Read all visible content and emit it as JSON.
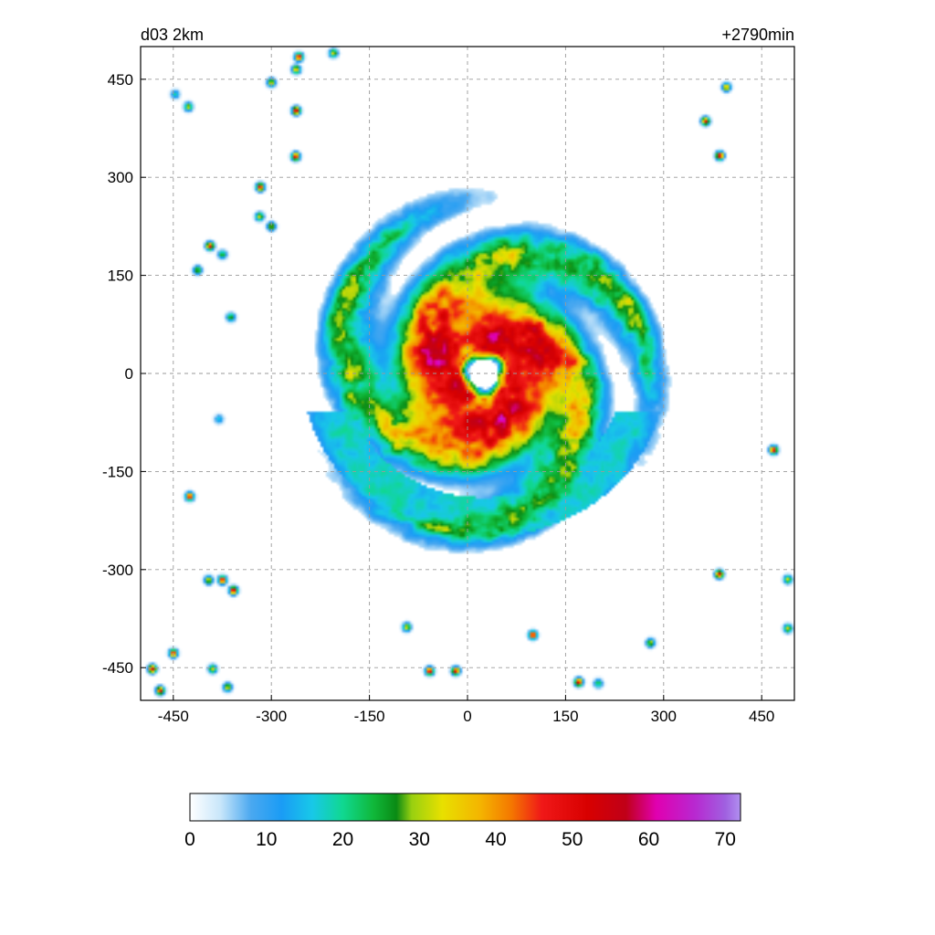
{
  "chart_data": {
    "type": "heatmap",
    "title_left": "d03 2km",
    "title_right": "+2790min",
    "xlabel": "",
    "ylabel": "",
    "xlim": [
      -500,
      500
    ],
    "ylim": [
      -500,
      500
    ],
    "x_ticks": [
      -450,
      -300,
      -150,
      0,
      150,
      300,
      450
    ],
    "y_ticks": [
      450,
      300,
      150,
      0,
      -150,
      -300,
      -450
    ],
    "grid": true,
    "colorbar": {
      "min": 0,
      "max": 72,
      "ticks": [
        0,
        10,
        20,
        30,
        40,
        50,
        60,
        70
      ],
      "orientation": "horizontal",
      "placement": "bottom",
      "stops": [
        {
          "v": 0,
          "color": "#ffffff"
        },
        {
          "v": 4,
          "color": "#c8e6fa"
        },
        {
          "v": 8,
          "color": "#4aa8f0"
        },
        {
          "v": 12,
          "color": "#1a9cf5"
        },
        {
          "v": 16,
          "color": "#18c8e8"
        },
        {
          "v": 20,
          "color": "#10d890"
        },
        {
          "v": 24,
          "color": "#10b83a"
        },
        {
          "v": 27,
          "color": "#0a8a14"
        },
        {
          "v": 29,
          "color": "#98d010"
        },
        {
          "v": 33,
          "color": "#e8e000"
        },
        {
          "v": 38,
          "color": "#f4b400"
        },
        {
          "v": 42,
          "color": "#f47800"
        },
        {
          "v": 46,
          "color": "#f01818"
        },
        {
          "v": 52,
          "color": "#d80000"
        },
        {
          "v": 57,
          "color": "#c00018"
        },
        {
          "v": 61,
          "color": "#e000b0"
        },
        {
          "v": 66,
          "color": "#b828d0"
        },
        {
          "v": 70,
          "color": "#a060e0"
        },
        {
          "v": 72,
          "color": "#b090f0"
        }
      ]
    },
    "features": {
      "eye_center": [
        25,
        0
      ],
      "eye_radius_km": 40,
      "eyewall_peak_dbz": 52,
      "rainband_outer_radius_km": 250,
      "isolated_cells": [
        {
          "x": -258,
          "y": 484,
          "dbz": 48
        },
        {
          "x": -262,
          "y": 465,
          "dbz": 35
        },
        {
          "x": -300,
          "y": 445,
          "dbz": 30
        },
        {
          "x": -262,
          "y": 402,
          "dbz": 50
        },
        {
          "x": -427,
          "y": 408,
          "dbz": 28
        },
        {
          "x": -263,
          "y": 332,
          "dbz": 48
        },
        {
          "x": -317,
          "y": 285,
          "dbz": 45
        },
        {
          "x": -318,
          "y": 240,
          "dbz": 30
        },
        {
          "x": -300,
          "y": 225,
          "dbz": 30
        },
        {
          "x": -394,
          "y": 195,
          "dbz": 45
        },
        {
          "x": -413,
          "y": 158,
          "dbz": 26
        },
        {
          "x": -375,
          "y": 182,
          "dbz": 22
        },
        {
          "x": -362,
          "y": 86,
          "dbz": 24
        },
        {
          "x": -396,
          "y": -316,
          "dbz": 30
        },
        {
          "x": -375,
          "y": -316,
          "dbz": 48
        },
        {
          "x": -358,
          "y": -332,
          "dbz": 50
        },
        {
          "x": -425,
          "y": -188,
          "dbz": 48
        },
        {
          "x": -390,
          "y": -452,
          "dbz": 30
        },
        {
          "x": -450,
          "y": -428,
          "dbz": 45
        },
        {
          "x": -482,
          "y": -452,
          "dbz": 52
        },
        {
          "x": -470,
          "y": -485,
          "dbz": 46
        },
        {
          "x": -93,
          "y": -388,
          "dbz": 30
        },
        {
          "x": -58,
          "y": -455,
          "dbz": 50
        },
        {
          "x": -18,
          "y": -455,
          "dbz": 48
        },
        {
          "x": 100,
          "y": -400,
          "dbz": 50
        },
        {
          "x": 170,
          "y": -472,
          "dbz": 50
        },
        {
          "x": 385,
          "y": -307,
          "dbz": 48
        },
        {
          "x": 468,
          "y": -117,
          "dbz": 48
        },
        {
          "x": 490,
          "y": -315,
          "dbz": 28
        },
        {
          "x": 490,
          "y": -390,
          "dbz": 30
        },
        {
          "x": 364,
          "y": 386,
          "dbz": 45
        },
        {
          "x": 386,
          "y": 333,
          "dbz": 50
        },
        {
          "x": 396,
          "y": 438,
          "dbz": 35
        },
        {
          "x": -367,
          "y": -480,
          "dbz": 30
        },
        {
          "x": 280,
          "y": -412,
          "dbz": 28
        },
        {
          "x": 200,
          "y": -474,
          "dbz": 20
        },
        {
          "x": -447,
          "y": 427,
          "dbz": 14
        },
        {
          "x": -205,
          "y": 490,
          "dbz": 30
        },
        {
          "x": -380,
          "y": -70,
          "dbz": 12
        }
      ]
    }
  }
}
